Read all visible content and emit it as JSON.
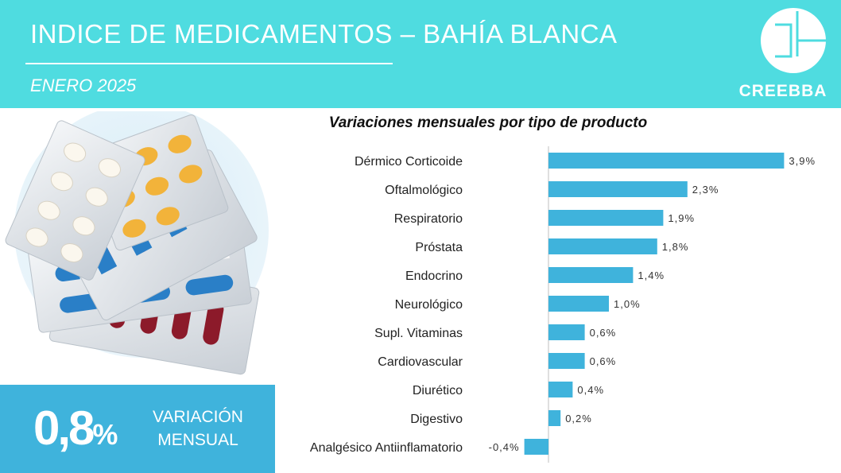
{
  "header": {
    "title": "INDICE DE MEDICAMENTOS – BAHÍA BLANCA",
    "subtitle": "ENERO 2025",
    "logo_text": "CREEBBA"
  },
  "kpi": {
    "value": "0,8",
    "unit": "%",
    "label_line1": "VARIACIÓN",
    "label_line2": "MENSUAL"
  },
  "colors": {
    "header_bg": "#4fdce0",
    "bar": "#3fb3dc",
    "kpi_bg": "#3fb3dc"
  },
  "chart_data": {
    "type": "bar",
    "orientation": "horizontal",
    "title": "Variaciones mensuales por tipo de producto",
    "categories": [
      "Dérmico Corticoide",
      "Oftalmológico",
      "Respiratorio",
      "Próstata",
      "Endocrino",
      "Neurológico",
      "Supl. Vitaminas",
      "Cardiovascular",
      "Diurético",
      "Digestivo",
      "Analgésico Antiinflamatorio"
    ],
    "values": [
      3.9,
      2.3,
      1.9,
      1.8,
      1.4,
      1.0,
      0.6,
      0.6,
      0.4,
      0.2,
      -0.4
    ],
    "value_labels": [
      "3,9%",
      "2,3%",
      "1,9%",
      "1,8%",
      "1,4%",
      "1,0%",
      "0,6%",
      "0,6%",
      "0,4%",
      "0,2%",
      "-0,4%"
    ],
    "grid": false,
    "legend": "none"
  }
}
